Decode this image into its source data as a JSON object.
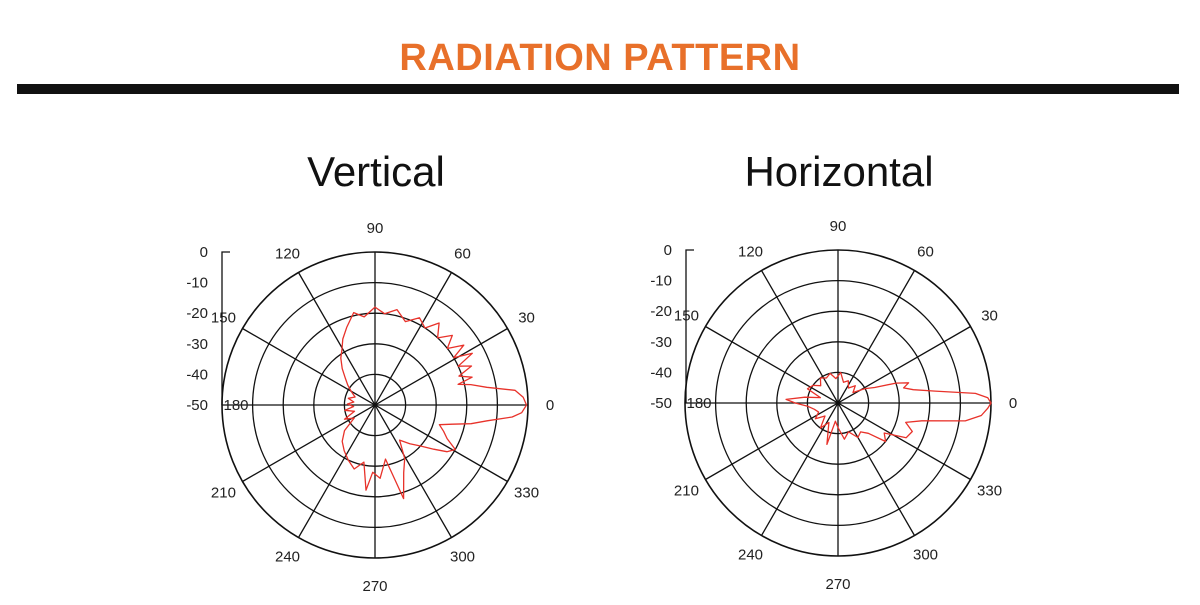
{
  "header": {
    "title": "RADIATION PATTERN",
    "title_color": "#E8702A",
    "rule_color": "#111111"
  },
  "colors": {
    "grid": "#111111",
    "trace": "#E8322A"
  },
  "chart_data": [
    {
      "type": "polar",
      "title": "Vertical",
      "angle_labels": [
        "0",
        "30",
        "60",
        "90",
        "120",
        "150",
        "180",
        "210",
        "240",
        "270",
        "300",
        "330"
      ],
      "radial_ticks": [
        "0",
        "-10",
        "-20",
        "-30",
        "-40",
        "-50"
      ],
      "rlim": [
        -50,
        0
      ],
      "series": [
        {
          "color": "#E8322A",
          "points": [
            [
              0,
              -0.5
            ],
            [
              3,
              -1.5
            ],
            [
              6,
              -4
            ],
            [
              9,
              -13
            ],
            [
              12,
              -18
            ],
            [
              14,
              -22
            ],
            [
              16,
              -17
            ],
            [
              19,
              -21
            ],
            [
              22,
              -16
            ],
            [
              25,
              -20
            ],
            [
              28,
              -14
            ],
            [
              31,
              -20
            ],
            [
              34,
              -15
            ],
            [
              38,
              -20
            ],
            [
              42,
              -16
            ],
            [
              47,
              -20
            ],
            [
              52,
              -16
            ],
            [
              57,
              -20
            ],
            [
              63,
              -18
            ],
            [
              70,
              -21
            ],
            [
              77,
              -18
            ],
            [
              84,
              -20
            ],
            [
              90,
              -18
            ],
            [
              97,
              -21
            ],
            [
              103,
              -19
            ],
            [
              110,
              -23
            ],
            [
              116,
              -26
            ],
            [
              121,
              -29
            ],
            [
              126,
              -31
            ],
            [
              132,
              -34
            ],
            [
              138,
              -37
            ],
            [
              144,
              -39
            ],
            [
              150,
              -41
            ],
            [
              158,
              -43
            ],
            [
              166,
              -41
            ],
            [
              172,
              -43
            ],
            [
              178,
              -41
            ],
            [
              184,
              -43
            ],
            [
              190,
              -40
            ],
            [
              197,
              -43
            ],
            [
              205,
              -39
            ],
            [
              212,
              -42
            ],
            [
              220,
              -37
            ],
            [
              228,
              -34
            ],
            [
              236,
              -32
            ],
            [
              244,
              -30
            ],
            [
              252,
              -28
            ],
            [
              259,
              -31
            ],
            [
              264,
              -22
            ],
            [
              268,
              -28
            ],
            [
              274,
              -26
            ],
            [
              281,
              -32
            ],
            [
              287,
              -18
            ],
            [
              293,
              -26
            ],
            [
              299,
              -30
            ],
            [
              305,
              -36
            ],
            [
              312,
              -33
            ],
            [
              318,
              -30
            ],
            [
              323,
              -26
            ],
            [
              327,
              -22
            ],
            [
              331,
              -20
            ],
            [
              335,
              -24
            ],
            [
              339,
              -26
            ],
            [
              343,
              -28
            ],
            [
              346,
              -24
            ],
            [
              349,
              -18
            ],
            [
              352,
              -13
            ],
            [
              355,
              -5
            ],
            [
              357,
              -2
            ],
            [
              360,
              -0.5
            ]
          ]
        }
      ]
    },
    {
      "type": "polar",
      "title": "Horizontal",
      "angle_labels": [
        "0",
        "30",
        "60",
        "90",
        "120",
        "150",
        "180",
        "210",
        "240",
        "270",
        "300",
        "330"
      ],
      "radial_ticks": [
        "0",
        "-10",
        "-20",
        "-30",
        "-40",
        "-50"
      ],
      "rlim": [
        -50,
        0
      ],
      "series": [
        {
          "color": "#E8322A",
          "points": [
            [
              0,
              0
            ],
            [
              2,
              -1
            ],
            [
              4,
              -5
            ],
            [
              7,
              -18
            ],
            [
              10,
              -25
            ],
            [
              13,
              -28
            ],
            [
              16,
              -26
            ],
            [
              19,
              -30
            ],
            [
              23,
              -37
            ],
            [
              28,
              -40
            ],
            [
              35,
              -44
            ],
            [
              45,
              -42
            ],
            [
              55,
              -44
            ],
            [
              65,
              -42
            ],
            [
              75,
              -43
            ],
            [
              85,
              -40
            ],
            [
              95,
              -42
            ],
            [
              105,
              -40
            ],
            [
              115,
              -41
            ],
            [
              125,
              -40
            ],
            [
              135,
              -42
            ],
            [
              145,
              -40
            ],
            [
              155,
              -39
            ],
            [
              163,
              -44
            ],
            [
              170,
              -39
            ],
            [
              176,
              -33
            ],
            [
              180,
              -36
            ],
            [
              186,
              -40
            ],
            [
              195,
              -42
            ],
            [
              205,
              -43
            ],
            [
              215,
              -41
            ],
            [
              225,
              -44
            ],
            [
              235,
              -40
            ],
            [
              245,
              -43
            ],
            [
              255,
              -36
            ],
            [
              262,
              -44
            ],
            [
              270,
              -42
            ],
            [
              280,
              -38
            ],
            [
              290,
              -40
            ],
            [
              300,
              -37
            ],
            [
              308,
              -38
            ],
            [
              315,
              -36
            ],
            [
              321,
              -30
            ],
            [
              327,
              -32
            ],
            [
              333,
              -25
            ],
            [
              339,
              -24
            ],
            [
              344,
              -27
            ],
            [
              348,
              -22
            ],
            [
              352,
              -8
            ],
            [
              355,
              -3
            ],
            [
              358,
              -1
            ],
            [
              360,
              0
            ]
          ]
        }
      ]
    }
  ]
}
